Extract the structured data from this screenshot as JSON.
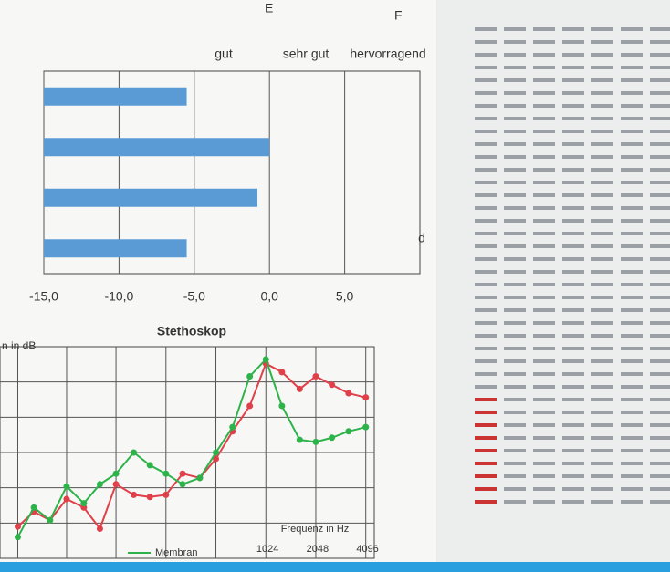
{
  "sheet": {
    "columns": [
      "E",
      "F"
    ]
  },
  "chart_data": [
    {
      "type": "barh",
      "header_labels": [
        "gut",
        "sehr gut",
        "hervorragend"
      ],
      "axis_note": "d",
      "categories": [
        null,
        null,
        null,
        null
      ],
      "values": [
        -5.5,
        0.0,
        -0.8,
        -5.5
      ],
      "color": "#5b9bd5",
      "xlim": [
        -15,
        10
      ],
      "xticks": [
        {
          "value": -15,
          "label": "-15,0"
        },
        {
          "value": -10,
          "label": "-10,0"
        },
        {
          "value": -5,
          "label": "-5,0"
        },
        {
          "value": 0,
          "label": "0,0"
        },
        {
          "value": 5,
          "label": "5,0"
        }
      ],
      "grid": true
    },
    {
      "type": "line",
      "title": "Stethoskop",
      "y_label": "n in dB",
      "x_label": "Frequenz in Hz",
      "log_x": true,
      "x": [
        32,
        40,
        50,
        63,
        80,
        100,
        125,
        160,
        200,
        250,
        315,
        400,
        500,
        630,
        800,
        1000,
        1250,
        1600,
        2000,
        2500,
        3150,
        4000
      ],
      "series": [
        {
          "color": "#e0404a",
          "values": [
            15,
            22,
            18,
            28,
            24,
            14,
            35,
            30,
            29,
            30,
            40,
            38,
            47,
            60,
            72,
            92,
            88,
            80,
            86,
            82,
            78,
            76
          ]
        },
        {
          "name": "Membran",
          "color": "#2db34a",
          "values": [
            10,
            24,
            18,
            34,
            26,
            35,
            40,
            50,
            44,
            40,
            35,
            38,
            50,
            62,
            86,
            94,
            72,
            56,
            55,
            57,
            60,
            62
          ]
        }
      ],
      "xlim": [
        25,
        4500
      ],
      "ylim": [
        0,
        100
      ],
      "xticks": [
        1024,
        2048,
        4096
      ],
      "grid": true,
      "legend": "bottom"
    }
  ]
}
